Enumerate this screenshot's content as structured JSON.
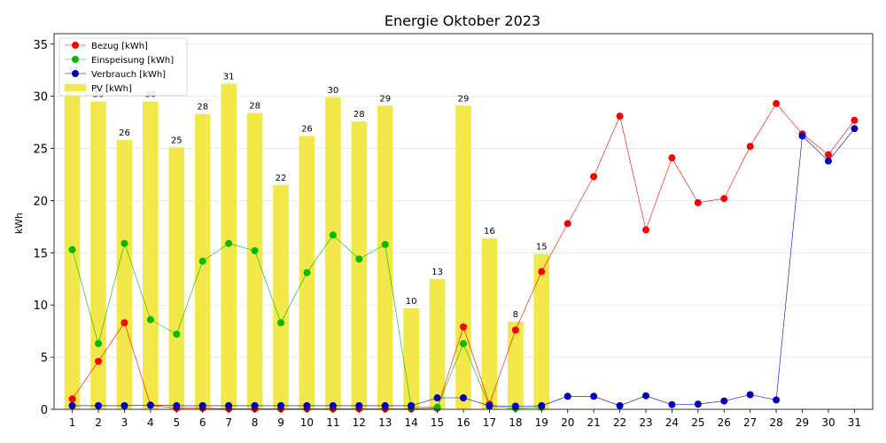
{
  "chart_data": {
    "type": "bar",
    "title": "Energie Oktober 2023",
    "xlabel": "",
    "ylabel": "kWh",
    "categories": [
      "1",
      "2",
      "3",
      "4",
      "5",
      "6",
      "7",
      "8",
      "9",
      "10",
      "11",
      "12",
      "13",
      "14",
      "15",
      "16",
      "17",
      "18",
      "19",
      "20",
      "21",
      "22",
      "23",
      "24",
      "25",
      "26",
      "27",
      "28",
      "29",
      "30",
      "31"
    ],
    "ylim": [
      0,
      36
    ],
    "yticks": [
      0,
      5,
      10,
      15,
      20,
      25,
      30,
      35
    ],
    "grid": "horizontal",
    "legend_position": "top-left",
    "bars": {
      "name": "PV [kWh]",
      "color": "#f2e84a",
      "values": [
        31.8,
        29.5,
        25.8,
        29.5,
        25.1,
        28.3,
        31.2,
        28.4,
        21.5,
        26.2,
        29.9,
        27.6,
        29.1,
        9.7,
        12.5,
        29.1,
        16.4,
        8.4,
        14.9,
        null,
        null,
        null,
        null,
        null,
        null,
        null,
        null,
        null,
        null,
        null,
        null
      ],
      "labels": [
        "32",
        "30",
        "26",
        "30",
        "25",
        "28",
        "31",
        "28",
        "22",
        "26",
        "30",
        "28",
        "29",
        "10",
        "13",
        "29",
        "16",
        "8",
        "15",
        "",
        "",
        "",
        "",
        "",
        "",
        "",
        "",
        "",
        "",
        "",
        ""
      ]
    },
    "series": [
      {
        "name": "Bezug [kWh]",
        "color": "#ff0000",
        "values": [
          1.0,
          4.6,
          8.3,
          0.4,
          0.1,
          0.1,
          0.05,
          0.05,
          0.05,
          0.05,
          0.05,
          0.05,
          0.05,
          0.05,
          0.1,
          7.9,
          0.5,
          7.6,
          13.2,
          17.8,
          22.3,
          28.1,
          17.2,
          24.1,
          19.8,
          20.2,
          25.2,
          29.3,
          26.4,
          24.4,
          27.7
        ]
      },
      {
        "name": "Einspeisung [kWh]",
        "color": "#00bb00",
        "values": [
          15.3,
          6.3,
          15.9,
          8.6,
          7.2,
          14.2,
          15.9,
          15.2,
          8.3,
          13.1,
          16.7,
          14.4,
          15.8,
          0.2,
          0.2,
          6.3,
          0.3,
          0.1,
          0.2,
          null,
          null,
          null,
          null,
          null,
          null,
          null,
          null,
          null,
          null,
          null,
          null
        ]
      },
      {
        "name": "Verbrauch [kWh]",
        "color": "#0000bb",
        "values": [
          0.35,
          0.35,
          0.35,
          0.4,
          0.35,
          0.35,
          0.35,
          0.35,
          0.35,
          0.35,
          0.35,
          0.35,
          0.35,
          0.35,
          1.1,
          1.1,
          0.35,
          0.3,
          0.35,
          1.25,
          1.25,
          0.35,
          1.3,
          0.45,
          0.5,
          0.8,
          1.4,
          0.9,
          26.2,
          23.8,
          26.9
        ]
      }
    ]
  }
}
